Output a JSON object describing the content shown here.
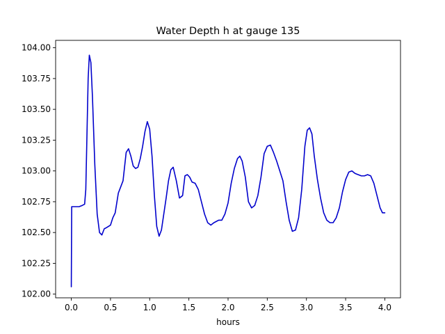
{
  "chart_data": {
    "type": "line",
    "title": "Water Depth h at gauge 135",
    "xlabel": "hours",
    "ylabel": "",
    "xlim": [
      -0.2,
      4.2
    ],
    "ylim": [
      101.97,
      104.06
    ],
    "grid": false,
    "line_color": "#0000cc",
    "x_ticks": [
      0.0,
      0.5,
      1.0,
      1.5,
      2.0,
      2.5,
      3.0,
      3.5,
      4.0
    ],
    "x_tick_labels": [
      "0.0",
      "0.5",
      "1.0",
      "1.5",
      "2.0",
      "2.5",
      "3.0",
      "3.5",
      "4.0"
    ],
    "y_ticks": [
      102.0,
      102.25,
      102.5,
      102.75,
      103.0,
      103.25,
      103.5,
      103.75,
      104.0
    ],
    "y_tick_labels": [
      "102.00",
      "102.25",
      "102.50",
      "102.75",
      "103.00",
      "103.25",
      "103.50",
      "103.75",
      "104.00"
    ],
    "series": [
      {
        "x": [
          0.0,
          0.005,
          0.02,
          0.06,
          0.1,
          0.14,
          0.17,
          0.185,
          0.2,
          0.215,
          0.23,
          0.25,
          0.27,
          0.3,
          0.33,
          0.36,
          0.39,
          0.42,
          0.45,
          0.5,
          0.53,
          0.56,
          0.6,
          0.63,
          0.66,
          0.7,
          0.73,
          0.76,
          0.79,
          0.82,
          0.85,
          0.88,
          0.91,
          0.94,
          0.97,
          1.0,
          1.03,
          1.06,
          1.09,
          1.12,
          1.15,
          1.18,
          1.21,
          1.24,
          1.27,
          1.3,
          1.34,
          1.38,
          1.42,
          1.45,
          1.48,
          1.51,
          1.54,
          1.58,
          1.62,
          1.66,
          1.7,
          1.74,
          1.78,
          1.82,
          1.85,
          1.88,
          1.92,
          1.96,
          2.0,
          2.04,
          2.08,
          2.12,
          2.15,
          2.18,
          2.22,
          2.26,
          2.3,
          2.34,
          2.38,
          2.42,
          2.46,
          2.5,
          2.54,
          2.58,
          2.62,
          2.66,
          2.7,
          2.74,
          2.78,
          2.82,
          2.86,
          2.9,
          2.94,
          2.98,
          3.01,
          3.04,
          3.07,
          3.1,
          3.14,
          3.18,
          3.22,
          3.26,
          3.3,
          3.34,
          3.38,
          3.42,
          3.46,
          3.5,
          3.54,
          3.58,
          3.62,
          3.66,
          3.7,
          3.74,
          3.78,
          3.82,
          3.86,
          3.9,
          3.94,
          3.97,
          4.0
        ],
        "y": [
          102.06,
          102.71,
          102.71,
          102.71,
          102.71,
          102.72,
          102.73,
          102.85,
          103.3,
          103.75,
          103.94,
          103.88,
          103.6,
          103.05,
          102.65,
          102.5,
          102.48,
          102.53,
          102.54,
          102.56,
          102.62,
          102.66,
          102.82,
          102.87,
          102.92,
          103.15,
          103.18,
          103.12,
          103.04,
          103.02,
          103.03,
          103.1,
          103.2,
          103.32,
          103.4,
          103.34,
          103.12,
          102.8,
          102.55,
          102.47,
          102.52,
          102.65,
          102.78,
          102.92,
          103.01,
          103.03,
          102.92,
          102.78,
          102.8,
          102.96,
          102.97,
          102.95,
          102.91,
          102.9,
          102.85,
          102.75,
          102.65,
          102.58,
          102.56,
          102.58,
          102.59,
          102.6,
          102.6,
          102.65,
          102.74,
          102.9,
          103.02,
          103.1,
          103.12,
          103.08,
          102.95,
          102.75,
          102.7,
          102.72,
          102.8,
          102.95,
          103.14,
          103.2,
          103.21,
          103.15,
          103.08,
          103.0,
          102.92,
          102.75,
          102.6,
          102.51,
          102.52,
          102.62,
          102.85,
          103.2,
          103.33,
          103.35,
          103.3,
          103.12,
          102.93,
          102.78,
          102.66,
          102.6,
          102.58,
          102.58,
          102.62,
          102.7,
          102.83,
          102.93,
          102.99,
          103.0,
          102.98,
          102.97,
          102.96,
          102.96,
          102.97,
          102.96,
          102.9,
          102.8,
          102.7,
          102.66,
          102.66
        ]
      }
    ]
  }
}
